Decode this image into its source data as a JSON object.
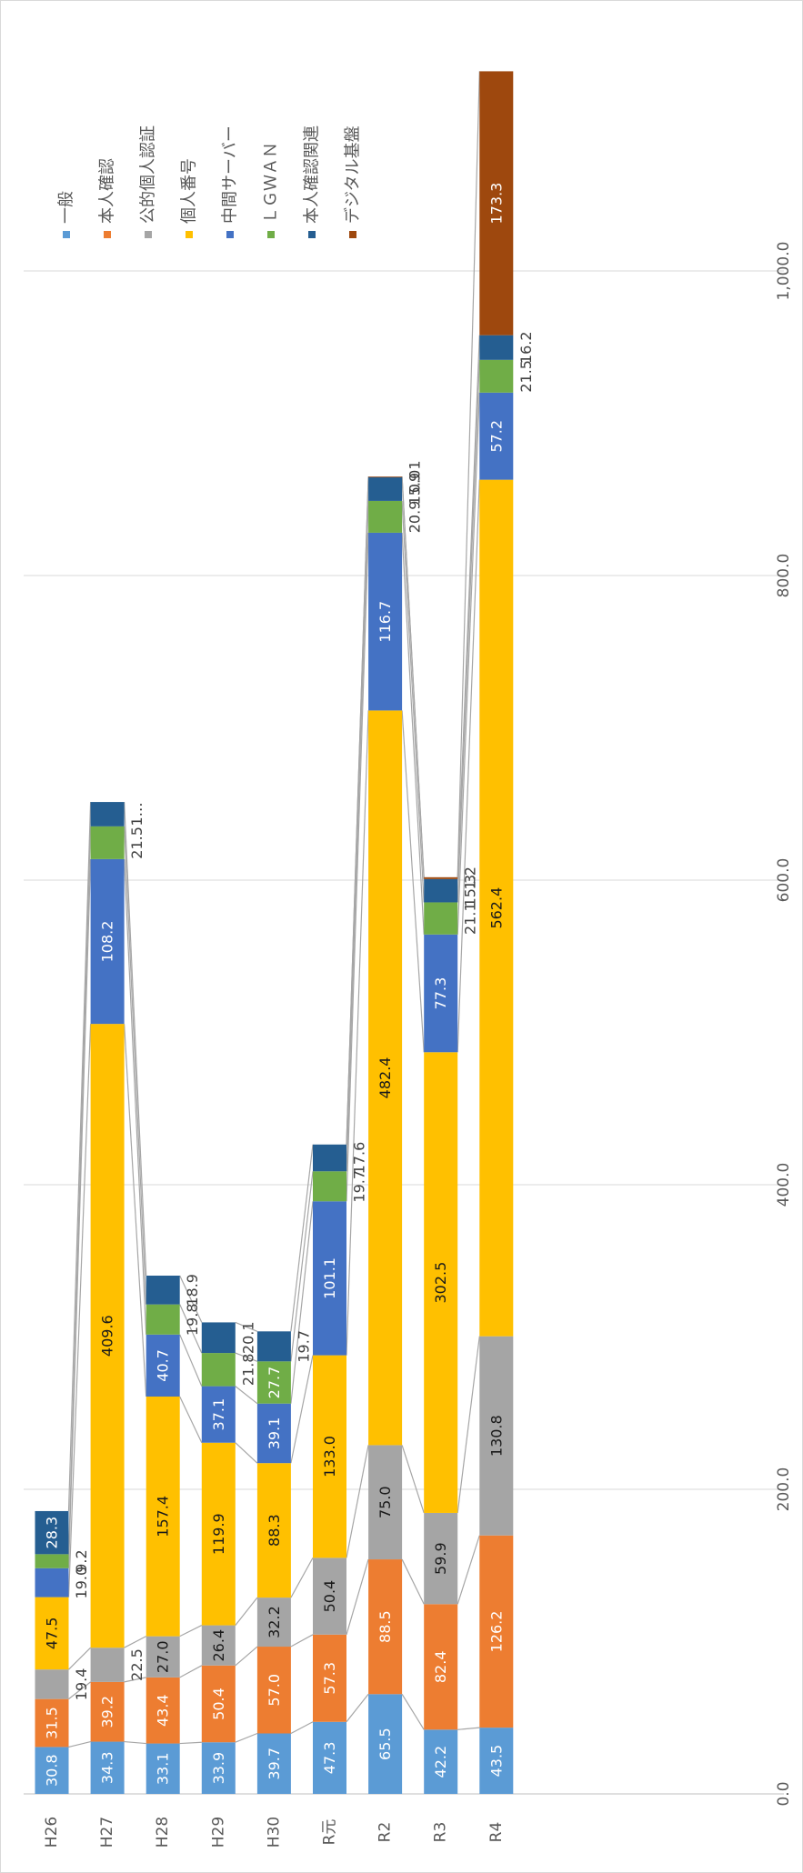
{
  "chart_data": {
    "type": "bar",
    "orientation": "horizontal",
    "stacked": true,
    "series_lines": true,
    "rotated_90": true,
    "categories": [
      "H26",
      "H27",
      "H28",
      "H29",
      "H30",
      "R元",
      "R2",
      "R3",
      "R4"
    ],
    "series": [
      {
        "name": "一般",
        "color": "#5B9BD5",
        "values": [
          30.8,
          34.3,
          33.1,
          33.9,
          39.7,
          47.3,
          65.5,
          42.2,
          43.5
        ]
      },
      {
        "name": "本人確認",
        "color": "#ED7D31",
        "values": [
          31.5,
          39.2,
          43.4,
          50.4,
          57.0,
          57.3,
          88.5,
          82.4,
          126.2
        ]
      },
      {
        "name": "公的個人認証",
        "color": "#A5A5A5",
        "values": [
          19.4,
          22.5,
          27.0,
          26.4,
          32.2,
          50.4,
          75.0,
          59.9,
          130.8
        ]
      },
      {
        "name": "個人番号",
        "color": "#FFC000",
        "values": [
          47.5,
          409.6,
          157.4,
          119.9,
          88.3,
          133.0,
          482.4,
          302.5,
          562.4
        ]
      },
      {
        "name": "中間サーバー",
        "color": "#4472C4",
        "values": [
          19.0,
          108.2,
          40.7,
          37.1,
          39.1,
          101.1,
          116.7,
          77.3,
          57.2
        ]
      },
      {
        "name": "ＬＧＷＡＮ",
        "color": "#70AD47",
        "values": [
          9.2,
          21.5,
          19.8,
          21.8,
          27.7,
          19.7,
          20.9,
          21.1,
          21.5
        ]
      },
      {
        "name": "本人確認関連",
        "color": "#255E91",
        "values": [
          28.3,
          16.0,
          18.9,
          20.1,
          19.7,
          17.6,
          15.9,
          15.3,
          16.2
        ]
      },
      {
        "name": "デジタル基盤",
        "color": "#9E480E",
        "values": [
          0,
          0,
          0,
          0,
          0,
          0,
          0.01,
          1.2,
          173.3
        ]
      }
    ],
    "data_labels": [
      [
        "30.8",
        "31.5",
        "19.4",
        "47.5",
        "19.0",
        "9.2",
        "28.3",
        ""
      ],
      [
        "34.3",
        "39.2",
        "22.5",
        "409.6",
        "108.2",
        "21.5",
        "1…",
        ""
      ],
      [
        "33.1",
        "43.4",
        "27.0",
        "157.4",
        "40.7",
        "19.8",
        "18.9",
        ""
      ],
      [
        "33.9",
        "50.4",
        "26.4",
        "119.9",
        "37.1",
        "21.8",
        "20.1",
        ""
      ],
      [
        "39.7",
        "57.0",
        "32.2",
        "88.3",
        "39.1",
        "27.7",
        "19.7",
        ""
      ],
      [
        "47.3",
        "57.3",
        "50.4",
        "133.0",
        "101.1",
        "19.7",
        "17.6",
        ""
      ],
      [
        "65.5",
        "88.5",
        "75.0",
        "482.4",
        "116.7",
        "20.9",
        "15.9",
        "0.01"
      ],
      [
        "42.2",
        "82.4",
        "59.9",
        "302.5",
        "77.3",
        "21.1",
        "15.3",
        "1.2"
      ],
      [
        "43.5",
        "126.2",
        "130.8",
        "562.4",
        "57.2",
        "21.5",
        "16.2",
        "173.3"
      ]
    ],
    "value_axis": {
      "min": 0,
      "max": 1200,
      "ticks": [
        0,
        200,
        400,
        600,
        800,
        1000
      ],
      "tick_labels": [
        "0.0",
        "200.0",
        "400.0",
        "600.0",
        "800.0",
        "1,000.0"
      ]
    },
    "grid": true,
    "legend": "top-right",
    "title": "",
    "xlabel": "",
    "ylabel": ""
  }
}
